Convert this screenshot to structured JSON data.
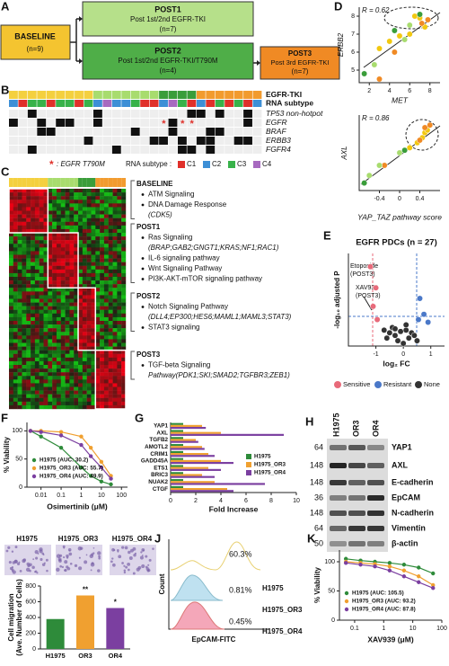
{
  "panel_labels": [
    "A",
    "B",
    "C",
    "D",
    "E",
    "F",
    "G",
    "H",
    "J",
    "K"
  ],
  "panel_a": {
    "baseline": {
      "title": "BASELINE",
      "n": "(n=9)"
    },
    "post1": {
      "title": "POST1",
      "text": "Post 1st/2nd EGFR-TKI",
      "n": "(n=7)"
    },
    "post2": {
      "title": "POST2",
      "text": "Post 1st/2nd EGFR-TKI/T790M",
      "n": "(n=4)"
    },
    "post3": {
      "title": "POST3",
      "text": "Post 3rd EGFR-TKI",
      "n": "(n=7)"
    }
  },
  "panel_b": {
    "rows": [
      "EGFR-TKI",
      "RNA subtype",
      "TP53 non-hotpot",
      "EGFR",
      "BRAF",
      "ERBB3",
      "FGFR4"
    ],
    "t790m_legend": {
      "symbol": "*",
      "text": ": EGFR T790M"
    },
    "subtype_legend": {
      "label": "RNA subtype :",
      "subtypes": [
        {
          "name": "C1",
          "color": "#e0302a"
        },
        {
          "name": "C2",
          "color": "#3d8fd6"
        },
        {
          "name": "C3",
          "color": "#38b24a"
        },
        {
          "name": "C4",
          "color": "#a76ac0"
        }
      ]
    }
  },
  "panel_c": {
    "sections": [
      {
        "title": "BASELINE",
        "items": [
          {
            "text": "ATM Signaling"
          },
          {
            "text": "DNA Damage Response",
            "detail": "(CDK5)"
          }
        ]
      },
      {
        "title": "POST1",
        "items": [
          {
            "text": "Ras Signaling",
            "detail": "(BRAP;GAB2;GNGT1;KRAS;NF1;RAC1)"
          },
          {
            "text": "IL-6 signaling pathway"
          },
          {
            "text": "Wnt Signaling Pathway"
          },
          {
            "text": "PI3K-AKT-mTOR signaling pathway"
          }
        ]
      },
      {
        "title": "POST2",
        "items": [
          {
            "text": "Notch Signaling Pathway",
            "detail": "(DLL4;EP300;HES6;MAML1;MAML3;STAT3)"
          },
          {
            "text": "STAT3 signaling"
          }
        ]
      },
      {
        "title": "POST3",
        "items": [
          {
            "text": "TGF-beta Signaling",
            "detail": "Pathway(PDK1;SKI;SMAD2;TGFBR3;ZEB1)"
          }
        ]
      }
    ]
  },
  "panel_h": {
    "columns": [
      "H1975",
      "OR3",
      "OR4"
    ],
    "proteins": [
      "YAP1",
      "AXL",
      "E-cadherin",
      "EpCAM",
      "N-cadherin",
      "Vimentin",
      "β-actin"
    ],
    "markers": [
      64,
      148,
      148,
      36,
      148,
      64,
      50
    ]
  },
  "panel_i": {
    "images": [
      "H1975",
      "H1975_OR3",
      "H1975_OR4"
    ]
  },
  "panel_j": {
    "ylabel": "Count",
    "xlabel": "EpCAM-FITC",
    "samples": [
      {
        "name": "H1975",
        "percent": "60.3%"
      },
      {
        "name": "H1975_OR3",
        "percent": "0.81%"
      },
      {
        "name": "H1975_OR4",
        "percent": "0.45%"
      }
    ]
  },
  "chart_data": [
    {
      "type": "scatter",
      "annotation": "R = 0.62",
      "xlabel": "MET",
      "ylabel": "ERBB2",
      "xlim": [
        1,
        9
      ],
      "ylim": [
        4.3,
        8.5
      ],
      "xticks": [
        2,
        4,
        6,
        8
      ],
      "yticks": [
        5,
        6,
        7,
        8
      ],
      "series": [
        {
          "color": "#f2c80f",
          "x": [
            3,
            4,
            5,
            6,
            7.5,
            6.5,
            7
          ],
          "values": [
            6.2,
            6.6,
            6.9,
            7.0,
            7.4,
            8.0,
            7.9
          ]
        },
        {
          "color": "#a8dc6e",
          "x": [
            2.5,
            5.5,
            6
          ],
          "values": [
            5.3,
            6.7,
            7.5
          ]
        },
        {
          "color": "#3a9d3a",
          "x": [
            1.5,
            4.5,
            7
          ],
          "values": [
            4.8,
            7.2,
            8.1
          ]
        },
        {
          "color": "#f08a24",
          "x": [
            3,
            4.5,
            7.8,
            7.2
          ],
          "values": [
            4.5,
            6.0,
            7.8,
            7.6
          ]
        }
      ]
    },
    {
      "type": "scatter",
      "annotation": "R = 0.86",
      "xlabel": "YAP_TAZ pathway score",
      "ylabel": "AXL",
      "xlim": [
        -0.8,
        0.8
      ],
      "ylim": [
        -1.5,
        1.5
      ],
      "xticks": [
        -0.4,
        0,
        0.4
      ],
      "series": [
        {
          "color": "#f2c80f",
          "x": [
            0.35,
            0.45,
            0.5,
            0.2,
            0.55
          ],
          "values": [
            0.4,
            0.6,
            0.8,
            0.2,
            0.9
          ]
        },
        {
          "color": "#f08a24",
          "x": [
            0.5,
            0.6,
            -0.3,
            0.4
          ],
          "values": [
            1.0,
            1.1,
            -0.5,
            0.5
          ]
        },
        {
          "color": "#a8dc6e",
          "x": [
            -0.6,
            -0.4,
            0
          ],
          "values": [
            -0.9,
            -0.5,
            0
          ]
        },
        {
          "color": "#3a9d3a",
          "x": [
            -0.7,
            0.1
          ],
          "values": [
            -1.2,
            0.1
          ]
        }
      ]
    },
    {
      "type": "scatter",
      "title": "EGFR PDCs (n = 27)",
      "xlabel": "log₂ FC",
      "ylabel": "-log₁₀ adjusted P",
      "xlim": [
        -2,
        1.5
      ],
      "ylim": [
        0,
        3.5
      ],
      "xticks": [
        -1,
        0,
        1
      ],
      "legend": "bottom",
      "annotations": [
        [
          "Etoposide",
          "(POST3)"
        ],
        [
          "XAV939",
          "(POST3)"
        ]
      ],
      "series": [
        {
          "name": "Sensitive",
          "color": "#e86a7a",
          "x": [
            -1.2,
            -1.0,
            -1.1,
            -0.95
          ],
          "values": [
            3.0,
            2.2,
            1.5,
            1.0
          ]
        },
        {
          "name": "Resistant",
          "color": "#4a78c8",
          "x": [
            0.6,
            0.75,
            0.9,
            0.55
          ],
          "values": [
            1.8,
            1.2,
            0.9,
            1.0
          ]
        },
        {
          "name": "None",
          "color": "#333333",
          "x": [
            -0.7,
            -0.5,
            -0.3,
            -0.1,
            0.1,
            0.3,
            -0.6,
            -0.2,
            0.2,
            0,
            -0.4,
            0.4,
            0.1,
            -0.3,
            0.5
          ],
          "values": [
            0.6,
            0.5,
            0.4,
            0.55,
            0.6,
            0.5,
            0.3,
            0.2,
            0.3,
            0.1,
            0.7,
            0.4,
            0.8,
            0.65,
            0.2
          ]
        }
      ]
    },
    {
      "type": "line",
      "xlog": true,
      "xlabel": "Osimertinib (μM)",
      "ylabel": "% Viability",
      "xlim": [
        0.002,
        200
      ],
      "ylim": [
        0,
        115
      ],
      "xticks": [
        0.01,
        0.1,
        1,
        10,
        100
      ],
      "yticks": [
        0,
        50,
        100
      ],
      "legend": "bottom-left",
      "series": [
        {
          "name": "H1975 (AUC: 30.2)",
          "color": "#2e8b3a",
          "x": [
            0.003,
            0.01,
            0.1,
            1,
            3,
            10,
            30
          ],
          "values": [
            100,
            90,
            70,
            35,
            20,
            10,
            5
          ]
        },
        {
          "name": "H1975_OR3 (AUC: 55.7)",
          "color": "#f0a030",
          "x": [
            0.003,
            0.01,
            0.1,
            1,
            3,
            10,
            30
          ],
          "values": [
            100,
            100,
            98,
            90,
            70,
            45,
            20
          ]
        },
        {
          "name": "H1975_OR4 (AUC: 49.9)",
          "color": "#7b3fa0",
          "x": [
            0.003,
            0.01,
            0.1,
            1,
            3,
            10,
            30
          ],
          "values": [
            100,
            98,
            92,
            75,
            55,
            35,
            15
          ]
        }
      ]
    },
    {
      "type": "barh",
      "xlabel": "Fold Increase",
      "categories": [
        "YAP1",
        "AXL",
        "TGFB2",
        "AMOTL2",
        "CRIM1",
        "GADD45A",
        "ETS1",
        "BRIC3",
        "NUAK2",
        "CTGF"
      ],
      "xlim": [
        0,
        10
      ],
      "xticks": [
        0,
        2,
        4,
        6,
        8,
        10
      ],
      "legend": "right",
      "series": [
        {
          "name": "H1975",
          "color": "#2e8b3a",
          "values": [
            1,
            1,
            1,
            1,
            1,
            1,
            1,
            1,
            1,
            1
          ]
        },
        {
          "name": "H1975_OR3",
          "color": "#f0a030",
          "values": [
            2.5,
            4,
            2,
            2.5,
            3,
            4,
            3,
            2.5,
            3.5,
            4.5
          ]
        },
        {
          "name": "H1975_OR4",
          "color": "#7b3fa0",
          "values": [
            2.8,
            9,
            2.2,
            2.7,
            3.5,
            5,
            4,
            3.5,
            7.5,
            5
          ]
        }
      ]
    },
    {
      "type": "bar",
      "ylabel": [
        "Cell migration",
        "(Ave. Number of Cells)"
      ],
      "categories": [
        "H1975",
        "OR3",
        "OR4"
      ],
      "values": [
        380,
        680,
        520
      ],
      "colors": [
        "#2e8b3a",
        "#f0a030",
        "#7b3fa0"
      ],
      "ylim": [
        0,
        800
      ],
      "yticks": [
        0,
        200,
        400,
        600,
        800
      ],
      "significance": {
        "OR3": "**",
        "OR4": "*"
      }
    },
    {
      "type": "line",
      "xlog": true,
      "xlabel": "XAV939 (μM)",
      "ylabel": "% Viability",
      "xlim": [
        0.03,
        100
      ],
      "ylim": [
        0,
        120
      ],
      "xticks": [
        0.1,
        1,
        10,
        100
      ],
      "yticks": [
        0,
        50,
        100
      ],
      "legend": "bottom-left",
      "series": [
        {
          "name": "H1975 (AUC: 105.5)",
          "color": "#2e8b3a",
          "x": [
            0.05,
            0.16,
            0.5,
            1.6,
            5,
            16,
            50
          ],
          "values": [
            105,
            102,
            100,
            98,
            95,
            90,
            80
          ]
        },
        {
          "name": "H1975_OR3 (AUC: 93.2)",
          "color": "#f0a030",
          "x": [
            0.05,
            0.16,
            0.5,
            1.6,
            5,
            16,
            50
          ],
          "values": [
            100,
            98,
            96,
            92,
            85,
            75,
            60
          ]
        },
        {
          "name": "H1975_OR4 (AUC: 87.8)",
          "color": "#7b3fa0",
          "x": [
            0.05,
            0.16,
            0.5,
            1.6,
            5,
            16,
            50
          ],
          "values": [
            98,
            95,
            92,
            85,
            75,
            65,
            55
          ]
        }
      ]
    }
  ]
}
